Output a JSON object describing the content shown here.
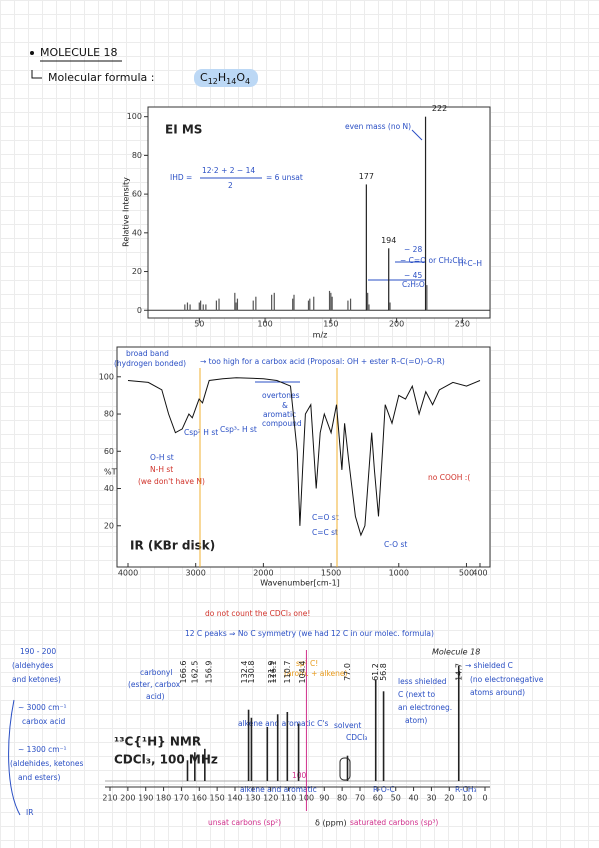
{
  "header": {
    "bullet_title": "MOLECULE 18",
    "formula_label": "Molecular formula :",
    "formula": [
      "C",
      "12",
      "H",
      "14",
      "O",
      "4"
    ]
  },
  "mass_spectrum": {
    "type": "bar",
    "title": "EI MS",
    "xlabel": "m/z",
    "ylabel": "Relative Intensity",
    "xlim": [
      11,
      271
    ],
    "ylim": [
      -4,
      105
    ],
    "xticks": [
      50,
      100,
      150,
      200,
      250
    ],
    "yticks": [
      0,
      20,
      40,
      60,
      80,
      100
    ],
    "color": "#555555",
    "x": [
      39,
      41,
      43,
      50,
      51,
      53,
      55,
      63,
      65,
      77,
      78,
      79,
      91,
      93,
      105,
      107,
      121,
      122,
      133,
      134,
      137,
      149,
      150,
      151,
      163,
      165,
      177,
      178,
      179,
      194,
      195,
      222,
      223
    ],
    "values": [
      3,
      4,
      3,
      4,
      5,
      3,
      3,
      5,
      6,
      9,
      4,
      6,
      5,
      7,
      8,
      9,
      6,
      8,
      5,
      6,
      7,
      10,
      9,
      7,
      5,
      6,
      65,
      9,
      3,
      32,
      4,
      100,
      13
    ],
    "peak_labels": [
      {
        "x": 222,
        "label": "222"
      },
      {
        "x": 177,
        "label": "177"
      },
      {
        "x": 194,
        "label": "194"
      }
    ],
    "notes": [
      "even mass (no N)",
      "IHD =",
      "12·2 + 2 − 14",
      "2",
      "= 6 unsat",
      "− 28",
      "− C=O or CH₂CH₂",
      "− 45",
      "C₂H₅O",
      "H–C–H"
    ]
  },
  "ir_spectrum": {
    "type": "line",
    "title": "IR (KBr disk)",
    "xlabel": "Wavenumber[cm-1]",
    "ylabel": "%T",
    "xlim": [
      4000,
      400
    ],
    "ylim": [
      0,
      116
    ],
    "x_scale_change": {
      "at": 2000,
      "factor": 2
    },
    "xticks": [
      4000,
      3000,
      2000,
      1500,
      1000,
      500,
      400
    ],
    "yticks": [
      20,
      40,
      60,
      80,
      100
    ],
    "color": "#111111",
    "x": [
      4000,
      3700,
      3500,
      3400,
      3300,
      3200,
      3100,
      3050,
      2980,
      2950,
      2900,
      2850,
      2800,
      2600,
      2400,
      2000,
      1900,
      1800,
      1750,
      1730,
      1710,
      1690,
      1650,
      1610,
      1580,
      1550,
      1500,
      1460,
      1420,
      1400,
      1370,
      1320,
      1280,
      1250,
      1200,
      1180,
      1150,
      1120,
      1100,
      1050,
      1000,
      950,
      900,
      850,
      800,
      750,
      700,
      600,
      500,
      400
    ],
    "values": [
      98,
      97,
      93,
      80,
      70,
      72,
      80,
      78,
      85,
      88,
      86,
      92,
      98,
      99,
      99.5,
      99,
      98,
      95,
      60,
      20,
      50,
      80,
      85,
      40,
      70,
      80,
      70,
      85,
      50,
      75,
      55,
      25,
      15,
      20,
      70,
      50,
      25,
      60,
      85,
      75,
      90,
      88,
      95,
      80,
      92,
      85,
      93,
      97,
      95,
      98
    ],
    "notes": [
      "broad band",
      "(hydrogen bonded)",
      "→ too high for a carbox acid (Proposal: OH + ester  R–C(=O)–O–R)",
      "overtones",
      "&",
      "aromatic",
      "compound",
      "Csp² H st",
      "Csp³- H st",
      "O-H st",
      "N-H st",
      "(we don't have N)",
      "no COOH :(",
      "C=O st",
      "C=C st",
      "C-O st"
    ]
  },
  "nmr_spectrum": {
    "type": "bar",
    "title": "¹³C{¹H} NMR",
    "subtitle": "CDCl₃, 100 MHz",
    "xlabel": "δ (ppm)",
    "xlim": [
      210,
      0
    ],
    "xticks": [
      210,
      200,
      190,
      180,
      170,
      160,
      150,
      140,
      130,
      120,
      110,
      100,
      90,
      80,
      70,
      60,
      50,
      40,
      30,
      20,
      10,
      0
    ],
    "color": "#222222",
    "x": [
      166.6,
      162.5,
      156.9,
      132.4,
      130.8,
      121.9,
      116.1,
      110.7,
      104.4,
      77.0,
      61.2,
      56.8,
      14.7
    ],
    "values": [
      18,
      25,
      28,
      62,
      55,
      47,
      58,
      60,
      50,
      22,
      88,
      78,
      100
    ],
    "peak_labels": [
      "166.6",
      "162.5",
      "156.9",
      "132.4",
      "130.8",
      "121.9",
      "116.1",
      "110.7",
      "104.4",
      "77.0",
      "61.2",
      "56.8",
      "14.7"
    ],
    "notes": [
      "do not count the CDCl₃ one!",
      "12 C peaks ⇒ No C symmetry (we had 12 C in our molec. formula)",
      "Molecule 18",
      "→ shielded C",
      "(no electronegative",
      "atoms around)",
      "less shielded",
      "C (next to",
      "an electroneg.",
      "atom)",
      "solvent",
      "CDCl₃",
      "carbonyl",
      "(ester, carbox",
      "acid)",
      "sp² C!",
      "(arom. + alkene)",
      "alkene and aromatic C's",
      "alkene and aromatic",
      "R-O-C",
      "R-CH₃",
      "unsat carbons (sp²)",
      "saturated carbons (sp³)",
      "100"
    ]
  },
  "margin_notes": [
    "190 - 200",
    "(aldehydes",
    "and ketones)",
    "~ 3000 cm⁻¹",
    "carbox acid",
    "~ 1300 cm⁻¹",
    "(aldehides, ketones",
    "and esters)",
    "IR"
  ]
}
